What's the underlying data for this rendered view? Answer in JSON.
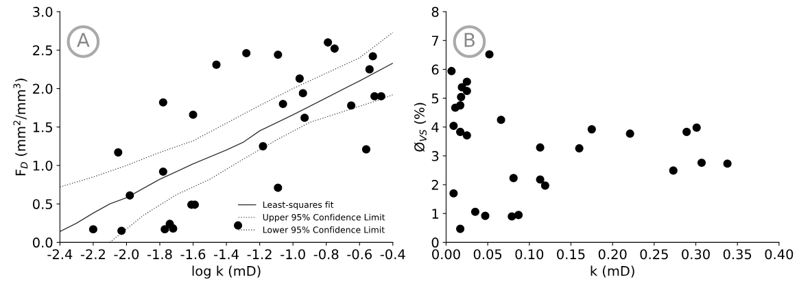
{
  "chart_data": [
    {
      "type": "scatter",
      "xlabel": "log k (mD)",
      "ylabel": "F$_{D}$ (mm$^{2}$/mm$^{3}$)",
      "annotations": [
        "A"
      ],
      "xlim": [
        -2.4,
        -0.4
      ],
      "ylim": [
        0,
        3.0
      ],
      "xticks": [
        -2.4,
        -2.2,
        {
          "value": -2,
          "label": "-2.0"
        },
        -1.8,
        -1.6,
        -1.4,
        -1.2,
        {
          "value": -1,
          "label": "-1.0"
        },
        -0.8,
        -0.6,
        -0.4
      ],
      "yticks": [
        {
          "value": 0,
          "label": "0.0"
        },
        0.5,
        {
          "value": 1,
          "label": "1.0"
        },
        1.5,
        {
          "value": 2,
          "label": "2.0"
        },
        2.5,
        {
          "value": 3,
          "label": "3.0"
        }
      ],
      "grid": false,
      "legend": "bottom right",
      "series": [
        {
          "color": "#000000",
          "marker": "circle",
          "x": [
            -2.2,
            -2.05,
            -2.03,
            -1.98,
            -1.78,
            -1.78,
            -1.77,
            -1.74,
            -1.72,
            -1.6,
            -1.61,
            -1.59,
            -1.46,
            -1.33,
            -1.28,
            -1.18,
            -1.09,
            -1.09,
            -1.06,
            -0.96,
            -0.94,
            -0.93,
            -0.79,
            -0.75,
            -0.65,
            -0.56,
            -0.54,
            -0.52,
            -0.51,
            -0.47
          ],
          "values": [
            0.17,
            1.17,
            0.15,
            0.61,
            1.82,
            0.92,
            0.17,
            0.24,
            0.18,
            1.66,
            0.49,
            0.49,
            2.31,
            0.22,
            2.46,
            1.25,
            0.71,
            2.44,
            1.8,
            2.13,
            1.94,
            1.62,
            2.6,
            2.52,
            1.78,
            1.21,
            2.25,
            2.42,
            1.9,
            1.9
          ]
        },
        {
          "type": "line",
          "name": "Least-squares fit",
          "color": "#333333",
          "line_style": "solid",
          "marker": "none",
          "x": [
            -2.4,
            -2.3,
            -2.2,
            -2.1,
            -2.0,
            -1.8,
            -1.6,
            -1.4,
            -1.3,
            -1.2,
            -1.0,
            -0.8,
            -0.6,
            -0.4
          ],
          "values": [
            0.14,
            0.25,
            0.38,
            0.5,
            0.58,
            0.82,
            1.02,
            1.2,
            1.3,
            1.45,
            1.66,
            1.88,
            2.1,
            2.33
          ]
        },
        {
          "type": "line",
          "name": "Upper 95% Confidence Limit",
          "color": "#555555",
          "line_style": "dotted",
          "marker": "none",
          "x": [
            -2.4,
            -2.2,
            -2.0,
            -1.8,
            -1.6,
            -1.4,
            -1.2,
            -1.0,
            -0.8,
            -0.6,
            -0.4
          ],
          "values": [
            0.72,
            0.85,
            1.0,
            1.17,
            1.32,
            1.55,
            1.78,
            2.0,
            2.2,
            2.4,
            2.73
          ]
        },
        {
          "type": "line",
          "name": "Lower 95% Confidence Limit",
          "color": "#555555",
          "line_style": "dotted",
          "marker": "none",
          "x": [
            -2.1,
            -1.9,
            -1.7,
            -1.5,
            -1.3,
            -1.1,
            -0.9,
            -0.7,
            -0.5,
            -0.4
          ],
          "values": [
            0.0,
            0.35,
            0.62,
            0.82,
            1.08,
            1.33,
            1.56,
            1.7,
            1.84,
            1.92
          ]
        }
      ]
    },
    {
      "type": "scatter",
      "xlabel": "k (mD)",
      "ylabel": "Ø$_{VS}$ (%)",
      "annotations": [
        "B"
      ],
      "xlim": [
        0,
        0.4
      ],
      "ylim": [
        0,
        8
      ],
      "xticks": [
        {
          "value": 0,
          "label": "0.00"
        },
        0.05,
        {
          "value": 0.1,
          "label": "0.10"
        },
        0.15,
        {
          "value": 0.2,
          "label": "0.20"
        },
        0.25,
        {
          "value": 0.3,
          "label": "0.30"
        },
        0.35,
        {
          "value": 0.4,
          "label": "0.40"
        }
      ],
      "yticks": [
        0,
        1,
        2,
        3,
        4,
        5,
        6,
        7,
        8
      ],
      "grid": false,
      "legend": false,
      "series": [
        {
          "color": "#000000",
          "marker": "circle",
          "x": [
            0.0065,
            0.052,
            0.025,
            0.019,
            0.025,
            0.018,
            0.011,
            0.017,
            0.066,
            0.009,
            0.017,
            0.025,
            0.175,
            0.221,
            0.289,
            0.301,
            0.113,
            0.16,
            0.307,
            0.338,
            0.273,
            0.081,
            0.113,
            0.119,
            0.009,
            0.035,
            0.047,
            0.079,
            0.087,
            0.017
          ],
          "values": [
            5.94,
            6.52,
            5.57,
            5.38,
            5.25,
            5.04,
            4.67,
            4.75,
            4.25,
            4.04,
            3.83,
            3.71,
            3.92,
            3.77,
            3.83,
            3.98,
            3.29,
            3.26,
            2.76,
            2.73,
            2.49,
            2.23,
            2.18,
            1.97,
            1.7,
            1.06,
            0.92,
            0.9,
            0.95,
            0.47
          ]
        }
      ]
    }
  ]
}
